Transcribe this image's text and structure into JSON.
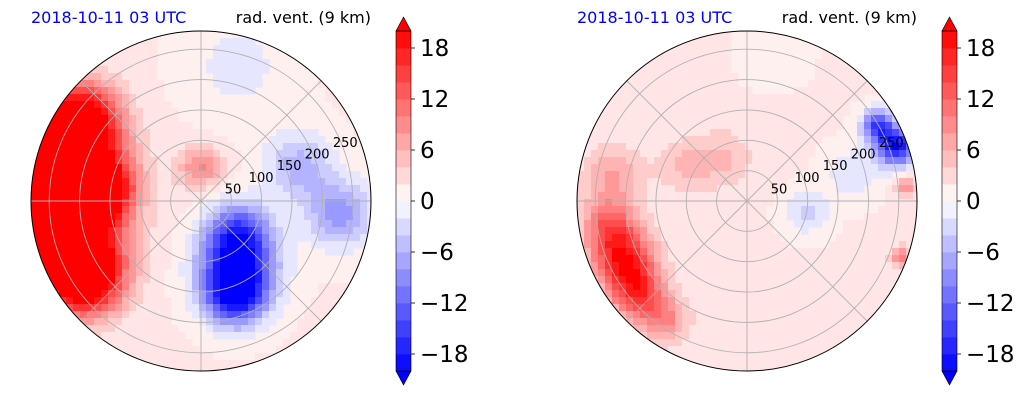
{
  "chart_data": [
    {
      "type": "heatmap",
      "projection": "polar",
      "title_left": "2018-10-11 03 UTC",
      "title_right": "rad. vent. (9 km)",
      "radial_ticks": [
        50,
        100,
        150,
        200,
        250
      ],
      "rmax": 280,
      "colorbar": {
        "ticks": [
          "18",
          "12",
          "6",
          "0",
          "−6",
          "−12",
          "−18"
        ],
        "values": [
          18,
          12,
          6,
          0,
          -6,
          -12,
          -18
        ],
        "vmin": -20,
        "vmax": 20,
        "extend": "both",
        "cmap": "bwr",
        "min_color": "#0000ff",
        "max_color": "#ff0000"
      },
      "fields": [
        {
          "angle_deg": 180,
          "r": 245,
          "value": 20,
          "spread": 70
        },
        {
          "angle_deg": 200,
          "r": 230,
          "value": 20,
          "spread": 55
        },
        {
          "angle_deg": 160,
          "r": 230,
          "value": 20,
          "spread": 55
        },
        {
          "angle_deg": 145,
          "r": 240,
          "value": 17,
          "spread": 40
        },
        {
          "angle_deg": 215,
          "r": 230,
          "value": 18,
          "spread": 40
        },
        {
          "angle_deg": 170,
          "r": 150,
          "value": 10,
          "spread": 30
        },
        {
          "angle_deg": 180,
          "r": 160,
          "value": 8,
          "spread": 25
        },
        {
          "angle_deg": 100,
          "r": 55,
          "value": 5,
          "spread": 25
        },
        {
          "angle_deg": 80,
          "r": 60,
          "value": 4,
          "spread": 22
        },
        {
          "angle_deg": 300,
          "r": 120,
          "value": -16,
          "spread": 45
        },
        {
          "angle_deg": 320,
          "r": 80,
          "value": -12,
          "spread": 35
        },
        {
          "angle_deg": 290,
          "r": 165,
          "value": -18,
          "spread": 35
        },
        {
          "angle_deg": 20,
          "r": 170,
          "value": -7,
          "spread": 40
        },
        {
          "angle_deg": 355,
          "r": 230,
          "value": -9,
          "spread": 40
        },
        {
          "angle_deg": 75,
          "r": 230,
          "value": -3,
          "spread": 60
        }
      ]
    },
    {
      "type": "heatmap",
      "projection": "polar",
      "title_left": "2018-10-11 03 UTC",
      "title_right": "rad. vent. (9 km)",
      "radial_ticks": [
        50,
        100,
        150,
        200,
        250
      ],
      "rmax": 280,
      "colorbar": {
        "ticks": [
          "18",
          "12",
          "6",
          "0",
          "−6",
          "−12",
          "−18"
        ],
        "values": [
          18,
          12,
          6,
          0,
          -6,
          -12,
          -18
        ],
        "vmin": -20,
        "vmax": 20,
        "extend": "both",
        "cmap": "bwr",
        "min_color": "#0000ff",
        "max_color": "#ff0000"
      },
      "fields": [
        {
          "angle_deg": 205,
          "r": 225,
          "value": 16,
          "spread": 35
        },
        {
          "angle_deg": 220,
          "r": 235,
          "value": 13,
          "spread": 30
        },
        {
          "angle_deg": 190,
          "r": 230,
          "value": 10,
          "spread": 30
        },
        {
          "angle_deg": 170,
          "r": 225,
          "value": 6,
          "spread": 35
        },
        {
          "angle_deg": 235,
          "r": 240,
          "value": 8,
          "spread": 28
        },
        {
          "angle_deg": 120,
          "r": 80,
          "value": 4,
          "spread": 35
        },
        {
          "angle_deg": 150,
          "r": 120,
          "value": 4,
          "spread": 30
        },
        {
          "angle_deg": 20,
          "r": 262,
          "value": -20,
          "spread": 22
        },
        {
          "angle_deg": 30,
          "r": 248,
          "value": -16,
          "spread": 18
        },
        {
          "angle_deg": 350,
          "r": 100,
          "value": -5,
          "spread": 25
        },
        {
          "angle_deg": 15,
          "r": 180,
          "value": -4,
          "spread": 30
        },
        {
          "angle_deg": 80,
          "r": 250,
          "value": -2,
          "spread": 35
        },
        {
          "angle_deg": 5,
          "r": 262,
          "value": 8,
          "spread": 12
        },
        {
          "angle_deg": 340,
          "r": 270,
          "value": 9,
          "spread": 12
        }
      ]
    }
  ]
}
